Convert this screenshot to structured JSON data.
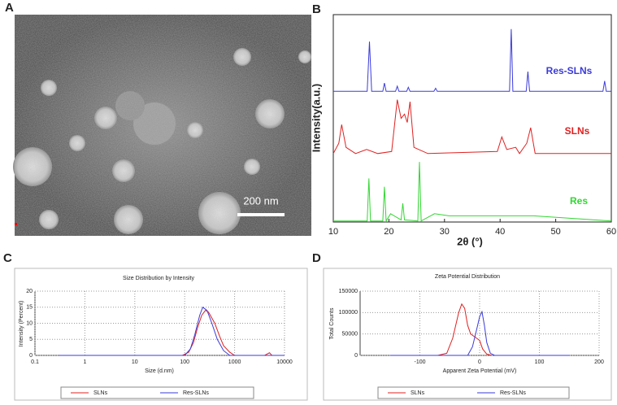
{
  "image_panel": {
    "panel_label": "A",
    "scale_bar_label": "200 nm"
  },
  "chart_data": [
    {
      "type": "line",
      "panel_label": "B",
      "x_label": "2θ (°)",
      "y_label": "Intensity(a.u.)",
      "xlim": [
        10,
        60
      ],
      "xticks": [
        10,
        20,
        30,
        40,
        50,
        60
      ],
      "ylim": [
        0,
        100
      ],
      "frame": true,
      "series": [
        {
          "name": "Res-SLNs",
          "color": "#3b3bd9",
          "x": [
            10,
            16.1,
            16.5,
            16.9,
            18.9,
            19.2,
            19.5,
            21.2,
            21.5,
            21.8,
            23.2,
            23.5,
            23.8,
            28.1,
            28.4,
            28.7,
            41.7,
            42,
            42.3,
            44.7,
            45,
            45.3,
            58.5,
            58.8,
            59.1,
            60
          ],
          "values": [
            63,
            63,
            87,
            63,
            63,
            67,
            63,
            63,
            65.5,
            63,
            63,
            65,
            63,
            63,
            64.5,
            63,
            63,
            93,
            63,
            63,
            72.5,
            63,
            63,
            68,
            63,
            63
          ]
        },
        {
          "name": "SLNs",
          "color": "#e02020",
          "x": [
            10,
            11,
            11.5,
            12.3,
            14,
            16,
            18,
            20.5,
            21.5,
            22.2,
            22.8,
            23.3,
            23.8,
            24.5,
            27,
            39.5,
            40.3,
            41.2,
            42.8,
            43.5,
            44.8,
            45.5,
            46.3,
            50,
            60
          ],
          "values": [
            33,
            38,
            47,
            36,
            33,
            35,
            33,
            34,
            59,
            50,
            52,
            48,
            58,
            36,
            33,
            34,
            41,
            35,
            36,
            33,
            38,
            45.5,
            33,
            33,
            33
          ]
        },
        {
          "name": "Res",
          "color": "#33d633",
          "x": [
            10,
            16.1,
            16.4,
            16.7,
            18.9,
            19.2,
            19.5,
            20.3,
            22.2,
            22.5,
            22.8,
            25.2,
            25.5,
            25.8,
            28.2,
            30.8,
            40.2,
            46,
            60
          ],
          "values": [
            0.5,
            0.5,
            21,
            0.5,
            0.5,
            17,
            0.5,
            4,
            1,
            9,
            1,
            0.5,
            29,
            0.5,
            4,
            3,
            3,
            3,
            0.5
          ]
        }
      ]
    },
    {
      "type": "line",
      "panel_label": "C",
      "title": "Size Distribution by Intensity",
      "x_label": "Size (d.nm)",
      "y_label": "Intensity (Percent)",
      "xscale": "log",
      "xlim": [
        0.1,
        10000
      ],
      "xticks": [
        0.1,
        1,
        10,
        100,
        1000,
        10000
      ],
      "ylim": [
        0,
        20
      ],
      "yticks": [
        0,
        5,
        10,
        15,
        20
      ],
      "grid": true,
      "series": [
        {
          "name": "SLNs",
          "color": "#e02020",
          "x": [
            0.3,
            90,
            120,
            150,
            180,
            220,
            260,
            300,
            400,
            500,
            600,
            800,
            1000,
            4000,
            5000,
            5600,
            10000
          ],
          "values": [
            0,
            0,
            1,
            4,
            8.5,
            12.5,
            14,
            13.5,
            10,
            6,
            3,
            1,
            0,
            0,
            0.8,
            0,
            0
          ]
        },
        {
          "name": "Res-SLNs",
          "color": "#3b3bd9",
          "x": [
            0.3,
            100,
            130,
            160,
            200,
            230,
            280,
            350,
            450,
            600,
            800,
            10000
          ],
          "values": [
            0,
            0,
            2,
            6.5,
            12.5,
            15,
            14,
            10,
            5,
            1.5,
            0,
            0
          ]
        }
      ]
    },
    {
      "type": "line",
      "panel_label": "D",
      "title": "Zeta Potential Distribution",
      "x_label": "Apparent Zeta Potential (mV)",
      "y_label": "Total Counts",
      "xlim": [
        -200,
        200
      ],
      "xticks": [
        -100,
        0,
        100,
        200
      ],
      "ylim": [
        0,
        150000
      ],
      "yticks": [
        0,
        50000,
        100000,
        150000
      ],
      "grid": true,
      "series": [
        {
          "name": "SLNs",
          "color": "#e02020",
          "x": [
            -70,
            -55,
            -45,
            -35,
            -30,
            -25,
            -20,
            -15,
            -5,
            0,
            5,
            12,
            20
          ],
          "values": [
            0,
            5000,
            40000,
            100000,
            120000,
            110000,
            70000,
            50000,
            40000,
            35000,
            15000,
            3000,
            0
          ]
        },
        {
          "name": "Res-SLNs",
          "color": "#3b3bd9",
          "x": [
            -150,
            -20,
            -12,
            -5,
            0,
            4,
            8,
            12,
            18,
            25,
            150
          ],
          "values": [
            0,
            0,
            20000,
            60000,
            90000,
            102000,
            70000,
            30000,
            5000,
            0,
            0
          ]
        }
      ]
    }
  ]
}
